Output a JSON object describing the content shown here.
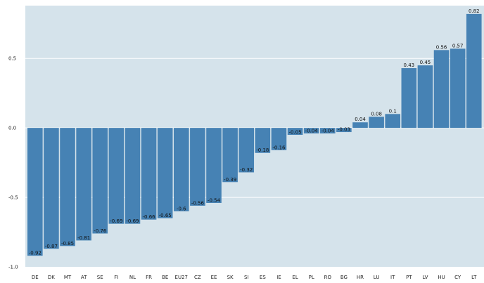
{
  "chart_data": {
    "type": "bar",
    "title": "",
    "xlabel": "",
    "ylabel": "",
    "ylim": [
      -1.0,
      0.88
    ],
    "yticks": [
      -1.0,
      -0.5,
      0.0,
      0.5
    ],
    "ytick_labels": [
      "-1.0",
      "-0.5",
      "0.0",
      "0.5"
    ],
    "grid": true,
    "colors": {
      "background": "#d5e3eb",
      "bar": "#4682b4",
      "gridline": "#ffffff"
    },
    "categories": [
      "DE",
      "DK",
      "MT",
      "AT",
      "SE",
      "FI",
      "NL",
      "FR",
      "BE",
      "EU27",
      "CZ",
      "EE",
      "SK",
      "SI",
      "ES",
      "IE",
      "EL",
      "PL",
      "RO",
      "BG",
      "HR",
      "LU",
      "IT",
      "PT",
      "LV",
      "HU",
      "CY",
      "LT"
    ],
    "values": [
      -0.92,
      -0.87,
      -0.85,
      -0.81,
      -0.76,
      -0.69,
      -0.69,
      -0.66,
      -0.65,
      -0.6,
      -0.56,
      -0.54,
      -0.39,
      -0.32,
      -0.18,
      -0.16,
      -0.05,
      -0.04,
      -0.04,
      -0.03,
      0.04,
      0.08,
      0.1,
      0.43,
      0.45,
      0.56,
      0.57,
      0.82
    ],
    "value_labels": [
      "-0.92",
      "-0.87",
      "-0.85",
      "-0.81",
      "-0.76",
      "-0.69",
      "-0.69",
      "-0.66",
      "-0.65",
      "-0.6",
      "-0.56",
      "-0.54",
      "-0.39",
      "-0.32",
      "-0.18",
      "-0.16",
      "-0.05",
      "-0.04",
      "-0.04",
      "-0.03",
      "0.04",
      "0.08",
      "0.1",
      "0.43",
      "0.45",
      "0.56",
      "0.57",
      "0.82"
    ]
  }
}
